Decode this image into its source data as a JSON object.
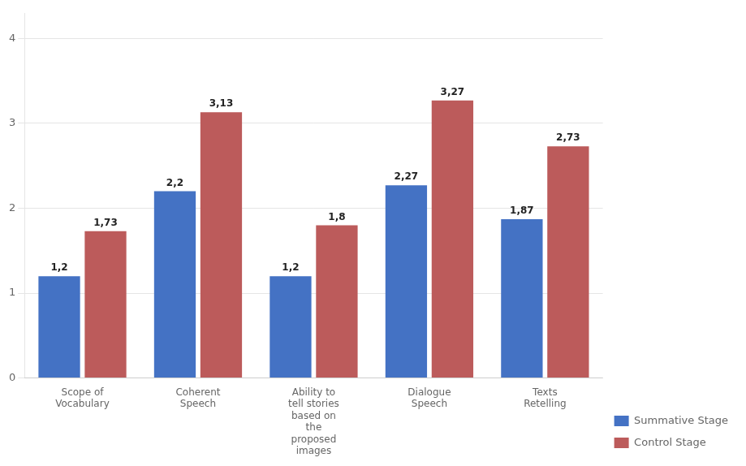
{
  "chart_data": {
    "type": "bar",
    "categories": [
      "Scope of\nVocabulary",
      "Coherent\nSpeech",
      "Ability to\ntell stories\nbased on\nthe\nproposed\nimages",
      "Dialogue\nSpeech",
      "Texts\nRetelling"
    ],
    "series": [
      {
        "name": "Summative Stage",
        "color": "#4472C4",
        "values": [
          1.2,
          2.2,
          1.2,
          2.27,
          1.87
        ],
        "value_labels": [
          "1,2",
          "2,2",
          "1,2",
          "2,27",
          "1,87"
        ]
      },
      {
        "name": "Control Stage",
        "color": "#BC5B5B",
        "values": [
          1.73,
          3.13,
          1.8,
          3.27,
          2.73
        ],
        "value_labels": [
          "1,73",
          "3,13",
          "1,8",
          "3,27",
          "2,73"
        ]
      }
    ],
    "ylim": [
      0,
      4.3
    ],
    "yticks": [
      0,
      1,
      2,
      3,
      4
    ],
    "grid": true,
    "legend": "lower right",
    "data_labels": true
  }
}
